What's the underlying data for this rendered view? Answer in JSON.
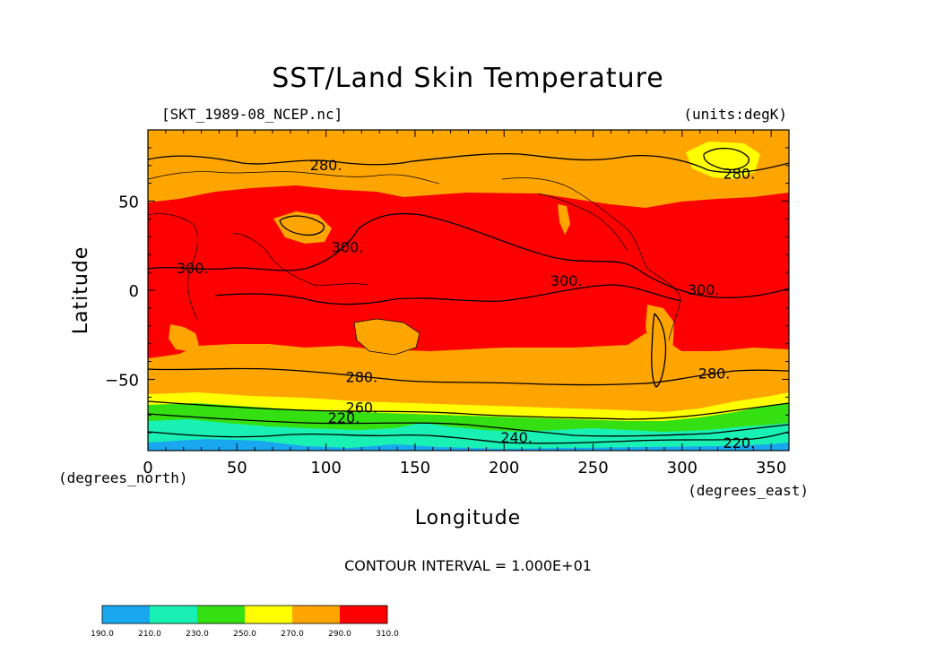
{
  "title": "SST/Land Skin Temperature",
  "file_label": "[SKT_1989-08_NCEP.nc]",
  "units_label": "(units:degK)",
  "x_axis": {
    "label": "Longitude",
    "units": "(degrees_east)",
    "ticks": [
      "0",
      "50",
      "100",
      "150",
      "200",
      "250",
      "300",
      "350"
    ]
  },
  "y_axis": {
    "label": "Latitude",
    "units": "(degrees_north)",
    "ticks": [
      "50",
      "0",
      "−50"
    ]
  },
  "contour_interval": "CONTOUR INTERVAL = 1.000E+01",
  "contour_labels": [
    "280.",
    "280.",
    "300.",
    "300.",
    "300.",
    "300.",
    "280.",
    "280.",
    "260.",
    "220.",
    "240.",
    "220."
  ],
  "legend": {
    "colors": [
      "#19a8f0",
      "#19f0b4",
      "#34e012",
      "#ffff00",
      "#ffa500",
      "#ff0000"
    ],
    "labels": [
      "190.0",
      "210.0",
      "230.0",
      "250.0",
      "270.0",
      "290.0",
      "310.0"
    ]
  },
  "chart_data": {
    "type": "heatmap",
    "title": "SST/Land Skin Temperature",
    "variable": "SKT",
    "source_file": "[SKT_1989-08_NCEP.nc]",
    "units": "degK",
    "xlabel": "Longitude",
    "ylabel": "Latitude",
    "xlim": [
      0,
      360
    ],
    "ylim": [
      -90,
      90
    ],
    "x_ticks": [
      0,
      50,
      100,
      150,
      200,
      250,
      300,
      350
    ],
    "y_ticks": [
      50,
      0,
      -50
    ],
    "contour_interval": 10,
    "color_levels": [
      190,
      210,
      230,
      250,
      270,
      290,
      310
    ],
    "latitude_bands": [
      {
        "lat_range": [
          40,
          90
        ],
        "range_degK": "270-290"
      },
      {
        "lat_range": [
          -35,
          55
        ],
        "range_degK": "290-310"
      },
      {
        "lat_range": [
          -60,
          -35
        ],
        "range_degK": "270-290"
      },
      {
        "lat_range": [
          -68,
          -60
        ],
        "range_degK": "250-270"
      },
      {
        "lat_range": [
          -78,
          -68
        ],
        "range_degK": "230-250"
      },
      {
        "lat_range": [
          -90,
          -78
        ],
        "range_degK": "210-230"
      }
    ],
    "contour_line_values": [
      220,
      240,
      260,
      280,
      300
    ]
  }
}
